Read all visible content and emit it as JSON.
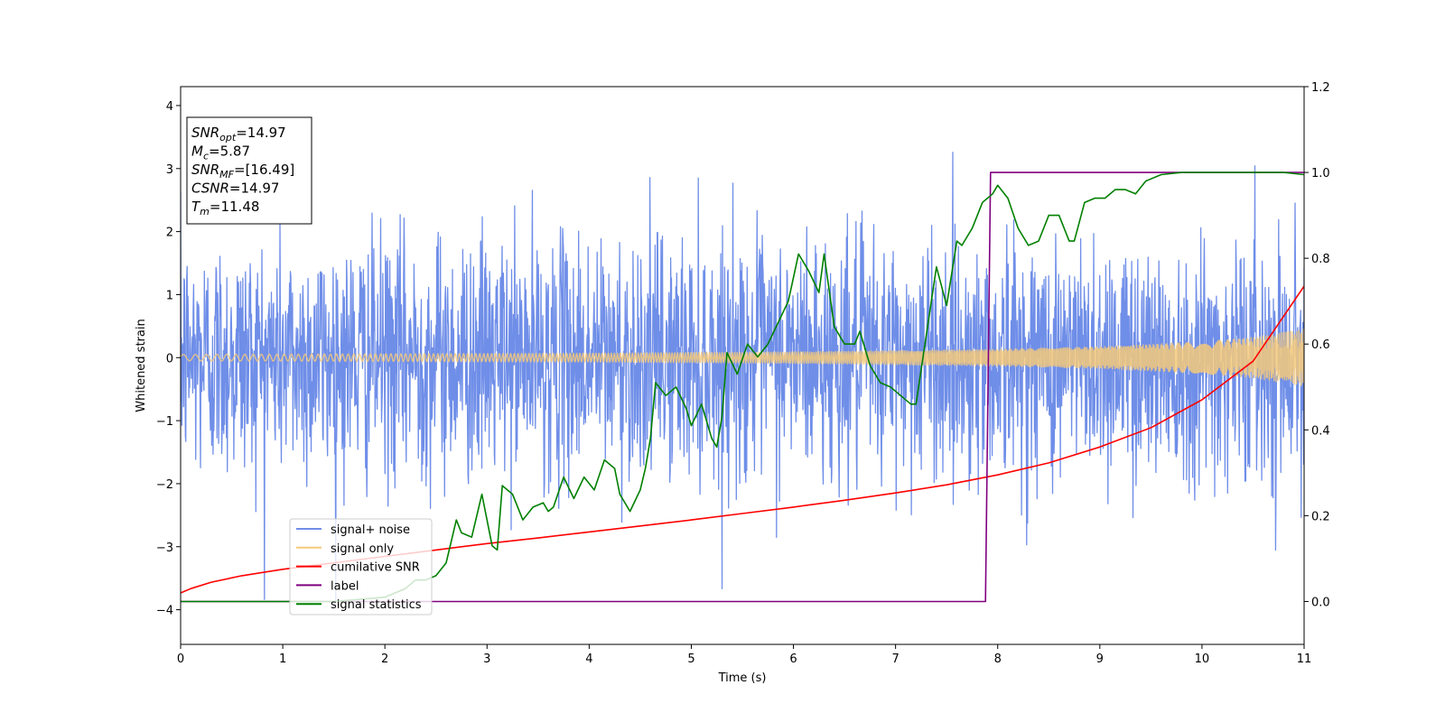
{
  "chart_data": {
    "type": "line",
    "xlabel": "Time (s)",
    "ylabel": "Whitened strain",
    "xlim": [
      0,
      11
    ],
    "ylim": [
      -4.55,
      4.3
    ],
    "y2lim": [
      -0.1,
      1.2
    ],
    "xticks": [
      0,
      1,
      2,
      3,
      4,
      5,
      6,
      7,
      8,
      9,
      10,
      11
    ],
    "yticks": [
      -4,
      -3,
      -2,
      -1,
      0,
      1,
      2,
      3,
      4
    ],
    "y2ticks": [
      0.0,
      0.2,
      0.4,
      0.6,
      0.8,
      1.0,
      1.2
    ],
    "annotation": {
      "lines": [
        {
          "base": "SNR",
          "sub": "opt",
          "value": "=14.97"
        },
        {
          "base": "M",
          "sub": "c",
          "value": "=5.87"
        },
        {
          "base": "SNR",
          "sub": "MF",
          "value": "=[16.49]"
        },
        {
          "base": "CSNR",
          "sub": "",
          "value": "=14.97"
        },
        {
          "base": "T",
          "sub": "m",
          "value": "=11.48"
        }
      ]
    },
    "legend": {
      "placement": "lower-left",
      "entries": [
        {
          "label": "signal+ noise",
          "color": "#6f8ee8"
        },
        {
          "label": "signal only",
          "color": "#f5c97a"
        },
        {
          "label": "cumilative SNR",
          "color": "#ff0000"
        },
        {
          "label": "label",
          "color": "#800080"
        },
        {
          "label": "signal statistics",
          "color": "#008000"
        }
      ]
    },
    "series": [
      {
        "name": "signal+ noise",
        "axis": "left",
        "color": "#6f8ee8",
        "kind": "noise",
        "std": 0.95,
        "x_range": [
          0,
          11
        ]
      },
      {
        "name": "signal only",
        "axis": "left",
        "color": "#f5c97a",
        "kind": "chirp",
        "amplitude_x": [
          0,
          2,
          4,
          6,
          8,
          9,
          10,
          10.5,
          11
        ],
        "amplitude_y": [
          0.05,
          0.06,
          0.07,
          0.09,
          0.13,
          0.17,
          0.25,
          0.32,
          0.45
        ]
      },
      {
        "name": "cumilative SNR",
        "axis": "right",
        "color": "#ff0000",
        "x": [
          0,
          0.1,
          0.3,
          0.6,
          1,
          1.5,
          2,
          2.5,
          3,
          3.5,
          4,
          4.5,
          5,
          5.5,
          6,
          6.5,
          7,
          7.5,
          8,
          8.5,
          9,
          9.5,
          10,
          10.5,
          11
        ],
        "y": [
          0.02,
          0.03,
          0.045,
          0.06,
          0.075,
          0.09,
          0.105,
          0.12,
          0.135,
          0.148,
          0.162,
          0.176,
          0.19,
          0.205,
          0.22,
          0.236,
          0.253,
          0.272,
          0.295,
          0.323,
          0.36,
          0.405,
          0.47,
          0.56,
          0.735
        ]
      },
      {
        "name": "label",
        "axis": "right",
        "color": "#800080",
        "x": [
          0,
          7.88,
          7.93,
          11
        ],
        "y": [
          0.0,
          0.0,
          1.0,
          1.0
        ]
      },
      {
        "name": "signal statistics",
        "axis": "right",
        "color": "#008000",
        "x": [
          0,
          0.5,
          1,
          1.5,
          2,
          2.2,
          2.3,
          2.4,
          2.5,
          2.6,
          2.7,
          2.75,
          2.85,
          2.95,
          3.05,
          3.1,
          3.15,
          3.25,
          3.35,
          3.45,
          3.55,
          3.6,
          3.65,
          3.75,
          3.85,
          3.95,
          4.05,
          4.15,
          4.25,
          4.3,
          4.4,
          4.5,
          4.55,
          4.6,
          4.65,
          4.75,
          4.85,
          4.95,
          5.0,
          5.1,
          5.2,
          5.25,
          5.3,
          5.35,
          5.45,
          5.55,
          5.65,
          5.75,
          5.85,
          5.95,
          6.05,
          6.15,
          6.25,
          6.3,
          6.4,
          6.5,
          6.6,
          6.65,
          6.75,
          6.85,
          6.95,
          7.05,
          7.15,
          7.2,
          7.3,
          7.4,
          7.5,
          7.6,
          7.65,
          7.75,
          7.85,
          7.95,
          8.0,
          8.1,
          8.2,
          8.3,
          8.4,
          8.5,
          8.6,
          8.7,
          8.75,
          8.85,
          8.95,
          9.05,
          9.15,
          9.25,
          9.35,
          9.45,
          9.6,
          9.8,
          10.0,
          10.2,
          10.4,
          10.6,
          10.8,
          11
        ],
        "y": [
          0.0,
          0.0,
          0.0,
          0.0,
          0.01,
          0.03,
          0.05,
          0.05,
          0.06,
          0.09,
          0.19,
          0.16,
          0.15,
          0.25,
          0.13,
          0.12,
          0.27,
          0.25,
          0.19,
          0.22,
          0.23,
          0.21,
          0.22,
          0.29,
          0.24,
          0.29,
          0.26,
          0.33,
          0.31,
          0.25,
          0.21,
          0.26,
          0.31,
          0.38,
          0.51,
          0.48,
          0.5,
          0.45,
          0.41,
          0.46,
          0.38,
          0.36,
          0.43,
          0.58,
          0.53,
          0.6,
          0.57,
          0.6,
          0.65,
          0.7,
          0.81,
          0.77,
          0.72,
          0.81,
          0.64,
          0.6,
          0.6,
          0.63,
          0.55,
          0.51,
          0.5,
          0.48,
          0.46,
          0.46,
          0.62,
          0.78,
          0.69,
          0.84,
          0.83,
          0.87,
          0.93,
          0.95,
          0.97,
          0.94,
          0.87,
          0.83,
          0.84,
          0.9,
          0.9,
          0.84,
          0.84,
          0.93,
          0.94,
          0.94,
          0.96,
          0.96,
          0.95,
          0.98,
          0.995,
          1.0,
          1.0,
          1.0,
          1.0,
          1.0,
          1.0,
          0.995
        ]
      }
    ]
  }
}
